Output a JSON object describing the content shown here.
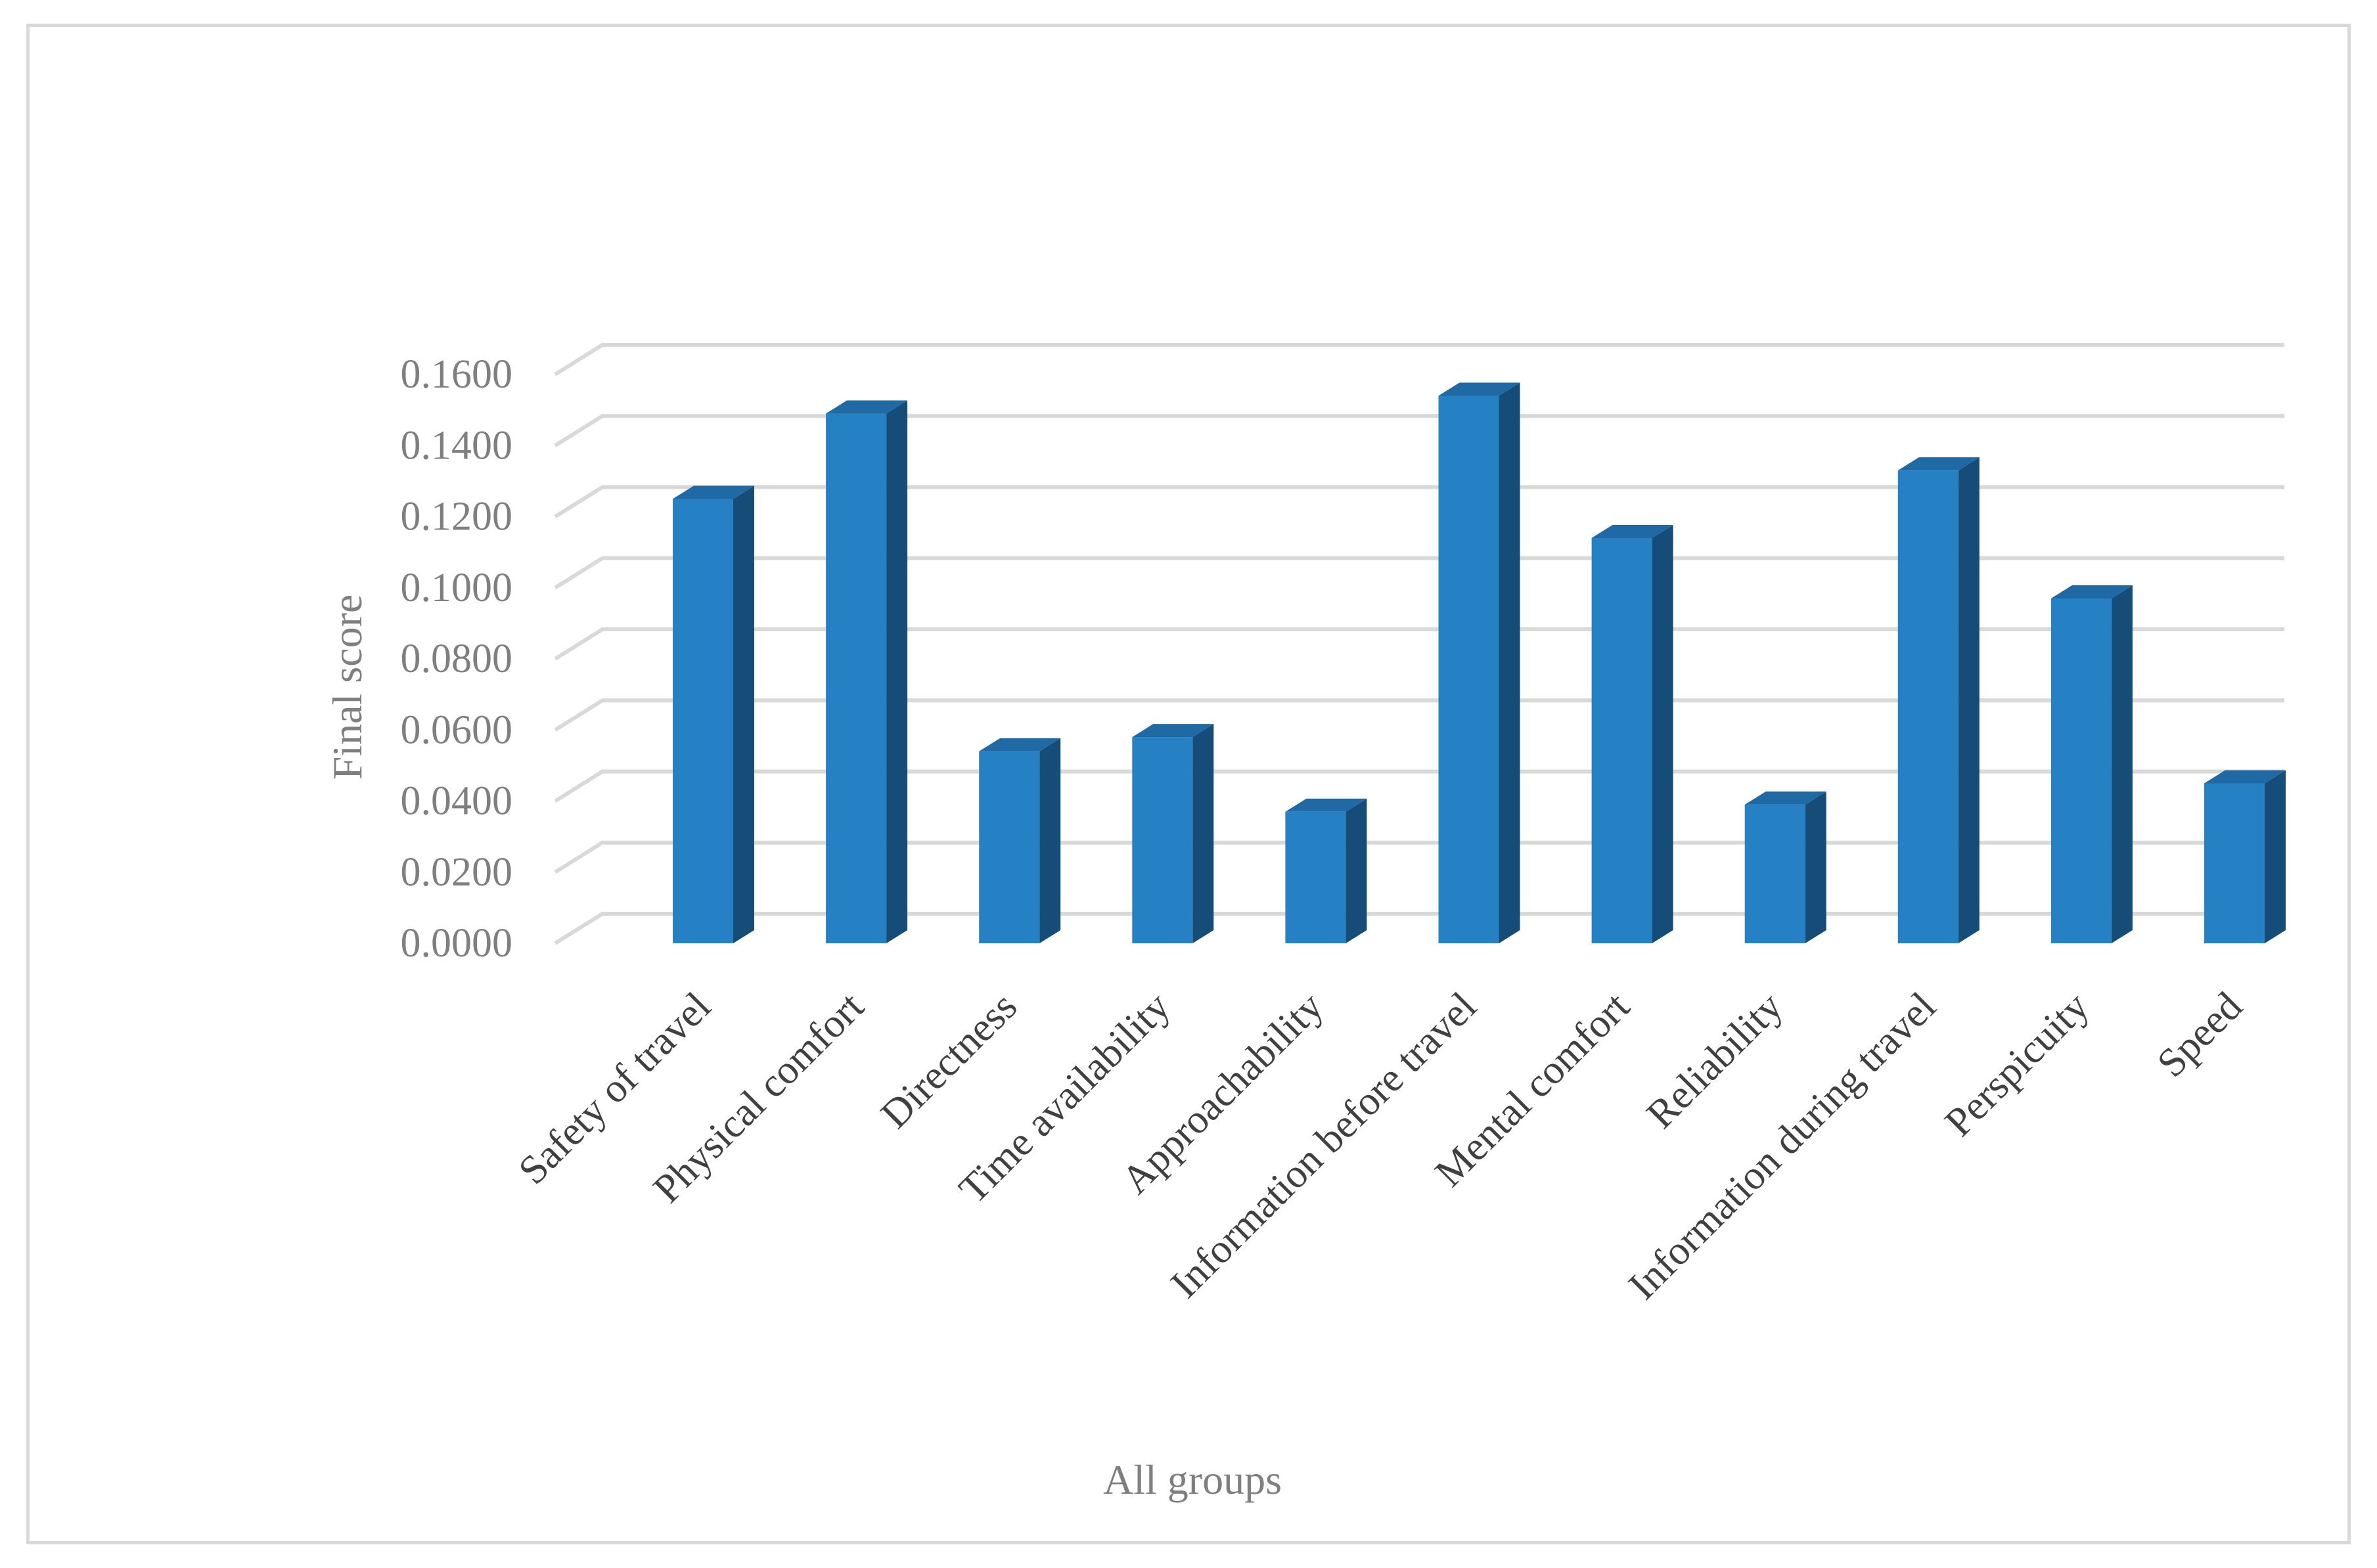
{
  "chart_data": {
    "type": "bar",
    "style": "3d-column",
    "title": "",
    "xlabel": "All groups",
    "ylabel": "Final score",
    "ylim": [
      0,
      0.16
    ],
    "yticks": [
      "0.0000",
      "0.0200",
      "0.0400",
      "0.0600",
      "0.0800",
      "0.1000",
      "0.1200",
      "0.1400",
      "0.1600"
    ],
    "grid": true,
    "legend": "none",
    "categories": [
      "Safety of travel",
      "Physical comfort",
      "Directness",
      "Time availability",
      "Approachability",
      "Information before travel",
      "Mental comfort",
      "Reliability",
      "Information during travel",
      "Perspicuity",
      "Speed"
    ],
    "values": [
      0.125,
      0.149,
      0.054,
      0.058,
      0.037,
      0.154,
      0.114,
      0.039,
      0.133,
      0.097,
      0.045
    ],
    "colors": {
      "bar_front": "#2581c4",
      "bar_side": "#154d78",
      "bar_top": "#1f6aa5",
      "grid": "#d9d9d9",
      "tick_text": "#7f7f7f",
      "category_text": "#404040"
    }
  }
}
